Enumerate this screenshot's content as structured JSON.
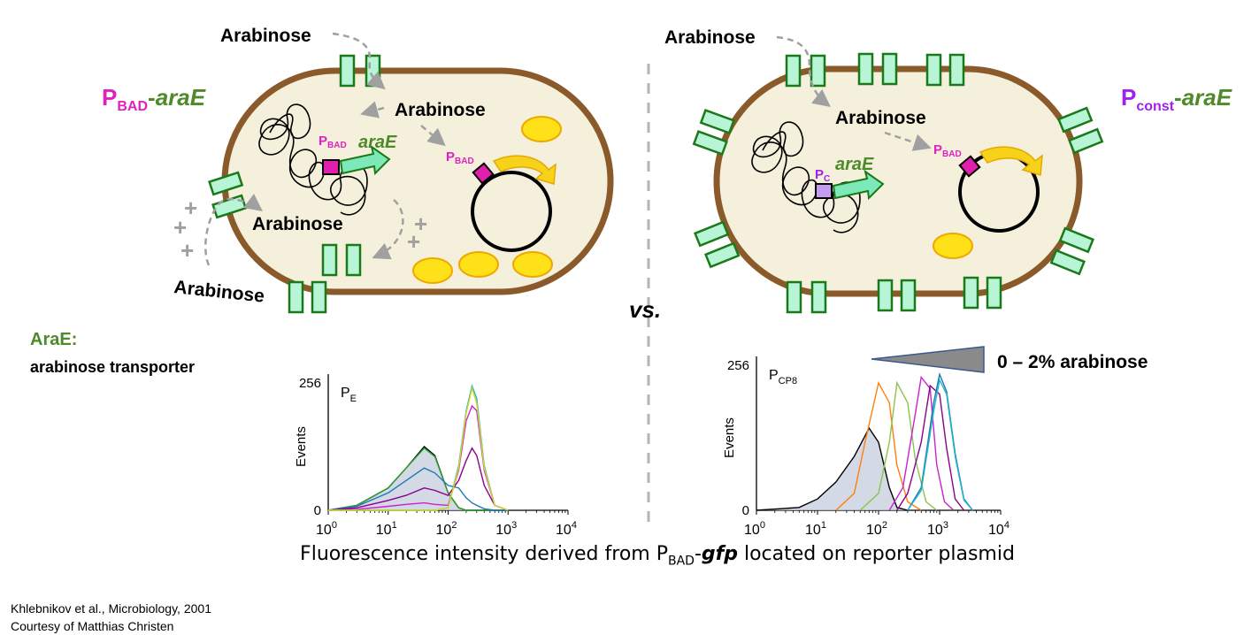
{
  "left_cell": {
    "label_p": "P",
    "label_sub": "BAD",
    "label_dash": "-",
    "label_gene": "araE",
    "arabinose_outside_top": "Arabinose",
    "arabinose_inside": "Arabinose",
    "arabinose_inside_lower": "Arabinose",
    "arabinose_outside_bottom": "Arabinose",
    "promoter_chrom_p": "P",
    "promoter_chrom_sub": "BAD",
    "gene_chrom": "araE",
    "promoter_plasmid_p": "P",
    "promoter_plasmid_sub": "BAD",
    "plus_signs": [
      "+",
      "+",
      "+",
      "+",
      "+"
    ]
  },
  "right_cell": {
    "label_p": "P",
    "label_sub": "const",
    "label_dash": "-",
    "label_gene": "araE",
    "arabinose_outside_top": "Arabinose",
    "arabinose_inside": "Arabinose",
    "promoter_chrom_p": "P",
    "promoter_chrom_sub": "C",
    "gene_chrom": "araE",
    "promoter_plasmid_p": "P",
    "promoter_plasmid_sub": "BAD"
  },
  "vs_label": "vs.",
  "arae_note": {
    "title": "AraE:",
    "desc": "arabinose transporter"
  },
  "gradient_label": "0 – 2% arabinose",
  "colors": {
    "membrane": "#8b5a2b",
    "cytoplasm": "#f5f0dc",
    "transporter_fill": "#b8f5d6",
    "transporter_stroke": "#1a7a1a",
    "promoter_bad": "#e11fae",
    "promoter_const": "#c39bf0",
    "gene_arrow": "#7de8b8",
    "gene_label": "#4f8a2a",
    "label_p_bad": "#e020c0",
    "label_p_const": "#a020f0",
    "arabinose_arrow": "#a0a0a0",
    "yellow_body": "#ffe11a",
    "yellow_arrow": "#f7d21a"
  },
  "chart_data": [
    {
      "type": "line",
      "title": "P",
      "title_sub": "E",
      "xlabel": "",
      "ylabel": "Events",
      "x_scale": "log",
      "xlim": [
        1,
        10000
      ],
      "ylim": [
        0,
        256
      ],
      "x_ticks": [
        {
          "base": "10",
          "exp": "0"
        },
        {
          "base": "10",
          "exp": "1"
        },
        {
          "base": "10",
          "exp": "2"
        },
        {
          "base": "10",
          "exp": "3"
        },
        {
          "base": "10",
          "exp": "4"
        }
      ],
      "y_ticks": [
        "0",
        "256"
      ],
      "x": [
        1,
        3,
        10,
        20,
        40,
        60,
        100,
        150,
        200,
        250,
        300,
        400,
        600,
        1000
      ],
      "series": [
        {
          "color": "#000000",
          "fill": true,
          "values": [
            0,
            10,
            45,
            85,
            128,
            110,
            35,
            5,
            0,
            0,
            0,
            0,
            0,
            0
          ]
        },
        {
          "color": "#2ca02c",
          "values": [
            0,
            10,
            45,
            85,
            125,
            108,
            35,
            5,
            0,
            0,
            0,
            0,
            0,
            0
          ]
        },
        {
          "color": "#1f77b4",
          "values": [
            0,
            8,
            35,
            60,
            85,
            75,
            50,
            45,
            25,
            15,
            10,
            3,
            0,
            0
          ]
        },
        {
          "color": "#8b008b",
          "values": [
            0,
            5,
            20,
            30,
            45,
            40,
            30,
            60,
            100,
            125,
            110,
            50,
            10,
            0
          ]
        },
        {
          "color": "#cc22cc",
          "values": [
            0,
            2,
            8,
            12,
            15,
            12,
            10,
            80,
            180,
            210,
            200,
            80,
            10,
            0
          ]
        },
        {
          "color": "#22b5c9",
          "values": [
            0,
            0,
            0,
            0,
            0,
            0,
            5,
            90,
            200,
            250,
            225,
            90,
            10,
            0
          ]
        },
        {
          "color": "#d6d620",
          "values": [
            0,
            0,
            0,
            0,
            0,
            0,
            5,
            85,
            195,
            245,
            215,
            85,
            10,
            0
          ]
        }
      ]
    },
    {
      "type": "line",
      "title": "P",
      "title_sub": "CP8",
      "xlabel": "",
      "ylabel": "Events",
      "x_scale": "log",
      "xlim": [
        1,
        10000
      ],
      "ylim": [
        0,
        256
      ],
      "x_ticks": [
        {
          "base": "10",
          "exp": "0"
        },
        {
          "base": "10",
          "exp": "1"
        },
        {
          "base": "10",
          "exp": "2"
        },
        {
          "base": "10",
          "exp": "3"
        },
        {
          "base": "10",
          "exp": "4"
        }
      ],
      "y_ticks": [
        "0",
        "256"
      ],
      "series": [
        {
          "color": "#000000",
          "fill": true,
          "x": [
            1,
            5,
            10,
            20,
            40,
            70,
            100,
            150,
            200,
            300
          ],
          "values": [
            0,
            5,
            20,
            50,
            95,
            145,
            120,
            40,
            5,
            0
          ]
        },
        {
          "color": "#ff7f0e",
          "x": [
            20,
            40,
            60,
            100,
            150,
            200,
            300,
            500
          ],
          "values": [
            0,
            30,
            120,
            225,
            190,
            80,
            15,
            0
          ]
        },
        {
          "color": "#8bc34a",
          "x": [
            50,
            100,
            150,
            200,
            300,
            400,
            600,
            900
          ],
          "values": [
            0,
            30,
            120,
            225,
            190,
            90,
            15,
            0
          ]
        },
        {
          "color": "#cc22cc",
          "x": [
            150,
            250,
            400,
            500,
            700,
            900,
            1200,
            1700
          ],
          "values": [
            0,
            40,
            170,
            235,
            215,
            80,
            15,
            0
          ]
        },
        {
          "color": "#8b008b",
          "x": [
            200,
            300,
            500,
            700,
            1000,
            1300,
            1800,
            2500
          ],
          "values": [
            0,
            30,
            120,
            220,
            205,
            110,
            20,
            0
          ]
        },
        {
          "color": "#1f77b4",
          "x": [
            300,
            500,
            800,
            1000,
            1300,
            1800,
            2500,
            3500
          ],
          "values": [
            0,
            40,
            190,
            240,
            210,
            100,
            20,
            0
          ]
        },
        {
          "color": "#22b5c9",
          "x": [
            300,
            500,
            800,
            1000,
            1300,
            1800,
            2500,
            3500
          ],
          "values": [
            0,
            35,
            175,
            230,
            205,
            95,
            18,
            0
          ]
        }
      ]
    }
  ],
  "caption": {
    "pre": "Fluorescence intensity derived from P",
    "sub": "BAD",
    "dash": "-",
    "gene": "gfp",
    "post": " located on reporter plasmid"
  },
  "credits": {
    "line1": "Khlebnikov et al., Microbiology, 2001",
    "line2": "Courtesy of Matthias Christen"
  }
}
